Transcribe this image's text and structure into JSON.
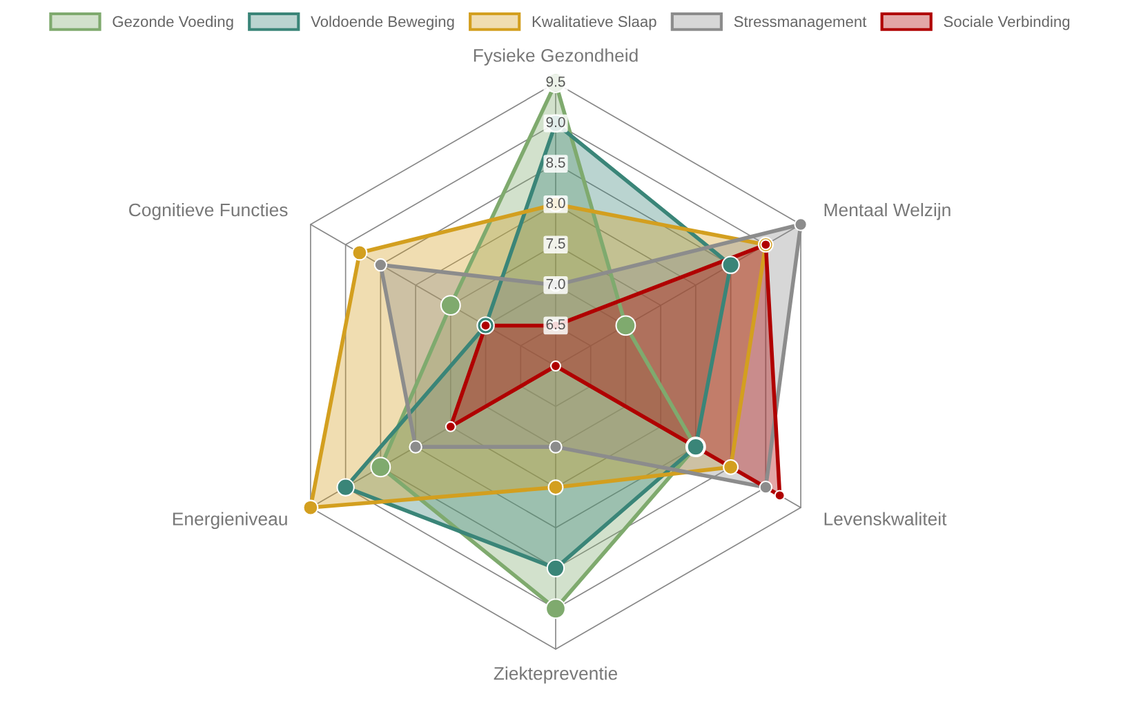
{
  "chart_data": {
    "type": "radar",
    "categories": [
      "Fysieke Gezondheid",
      "Mentaal Welzijn",
      "Levenskwaliteit",
      "Ziektepreventie",
      "Energieniveau",
      "Cognitieve Functies"
    ],
    "ylim": [
      6,
      9.5
    ],
    "yticks": [
      6.5,
      {
        "value": 7,
        "label": "7.0"
      },
      7.5,
      {
        "value": 8,
        "label": "8.0"
      },
      8.5,
      {
        "value": 9,
        "label": "9.0"
      },
      9.5
    ],
    "legend": "top",
    "marker": "circle",
    "grid": true,
    "series": [
      {
        "name": "Gezonde Voeding",
        "color": "#7faa6e",
        "values": [
          9.5,
          7.0,
          8.0,
          9.0,
          8.5,
          7.5
        ]
      },
      {
        "name": "Voldoende Beweging",
        "color": "#3a8578",
        "values": [
          9.0,
          8.5,
          8.0,
          8.5,
          9.0,
          7.0
        ]
      },
      {
        "name": "Kwalitatieve Slaap",
        "color": "#d39f1f",
        "values": [
          8.0,
          9.0,
          8.5,
          7.5,
          9.5,
          8.8
        ]
      },
      {
        "name": "Stressmanagement",
        "color": "#8c8c8c",
        "values": [
          7.0,
          9.5,
          9.0,
          7.0,
          8.0,
          8.5
        ]
      },
      {
        "name": "Sociale Verbinding",
        "color": "#b00000",
        "values": [
          6.5,
          9.0,
          9.2,
          6.0,
          7.5,
          7.0
        ]
      }
    ]
  }
}
